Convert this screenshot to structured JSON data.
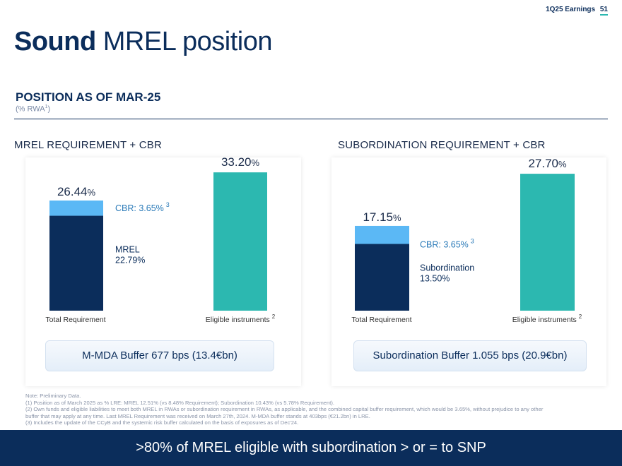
{
  "header": {
    "label": "1Q25 Earnings",
    "page": "51"
  },
  "title": {
    "bold": "Sound",
    "rest": "MREL position"
  },
  "subtitle": "POSITION AS OF MAR-25",
  "subnote": {
    "text": "(% RWA",
    "sup": "1",
    "close": ")"
  },
  "sections": {
    "left_title": "MREL REQUIREMENT + CBR",
    "right_title": "SUBORDINATION REQUIREMENT + CBR"
  },
  "buffers": {
    "left": "M-MDA Buffer 677 bps (13.4€bn)",
    "right": "Subordination Buffer 1.055 bps (20.9€bn)"
  },
  "colors": {
    "navy": "#0b2d5b",
    "light_blue": "#5bb8f5",
    "teal": "#2cb8b0",
    "label_blue": "#2a7ab8"
  },
  "chart_data": [
    {
      "type": "bar",
      "title": "MREL REQUIREMENT + CBR",
      "categories": [
        "Total Requirement",
        "Eligible instruments"
      ],
      "category_sups": [
        "",
        "2"
      ],
      "ylim": [
        0,
        36
      ],
      "series": [
        {
          "name": "MREL",
          "values": [
            22.79,
            0
          ],
          "color": "#0b2d5b"
        },
        {
          "name": "CBR",
          "values": [
            3.65,
            0
          ],
          "color": "#5bb8f5"
        },
        {
          "name": "Eligible instruments",
          "values": [
            0,
            33.2
          ],
          "color": "#2cb8b0"
        }
      ],
      "totals": [
        "26.44",
        "33.20"
      ],
      "unit": "%",
      "annotations": {
        "cbr_label": "CBR: 3.65%",
        "cbr_sup": "3",
        "base_label_line1": "MREL",
        "base_label_line2": "22.79%"
      }
    },
    {
      "type": "bar",
      "title": "SUBORDINATION REQUIREMENT + CBR",
      "categories": [
        "Total Requirement",
        "Eligible instruments"
      ],
      "category_sups": [
        "",
        "2"
      ],
      "ylim": [
        0,
        30
      ],
      "series": [
        {
          "name": "Subordination",
          "values": [
            13.5,
            0
          ],
          "color": "#0b2d5b"
        },
        {
          "name": "CBR",
          "values": [
            3.65,
            0
          ],
          "color": "#5bb8f5"
        },
        {
          "name": "Eligible instruments",
          "values": [
            0,
            27.7
          ],
          "color": "#2cb8b0"
        }
      ],
      "totals": [
        "17.15",
        "27.70"
      ],
      "unit": "%",
      "annotations": {
        "cbr_label": "CBR: 3.65%",
        "cbr_sup": "3",
        "base_label_line1": "Subordination",
        "base_label_line2": "13.50%"
      }
    }
  ],
  "notes": [
    "Note: Preliminary Data.",
    "(1) Position as of March 2025 as % LRE: MREL 12.51% (vs 8.48% Requirement); Subordination 10.43% (vs 5.78% Requirement).",
    "(2) Own funds and eligible liabilities to meet both MREL in RWAs or subordination requirement in RWAs, as applicable, and the combined capital buffer requirement, which would be 3.65%, without prejudice to any other",
    "buffer that may apply at any time. Last MREL Requirement was received on March 27th, 2024. M-MDA buffer stands at 403bps (€21.2bn) in LRE.",
    "(3) Includes the update of the CCyB and the systemic risk buffer calculated on the basis of exposures as of Dec'24."
  ],
  "footer": ">80% of MREL eligible with subordination > or = to SNP"
}
